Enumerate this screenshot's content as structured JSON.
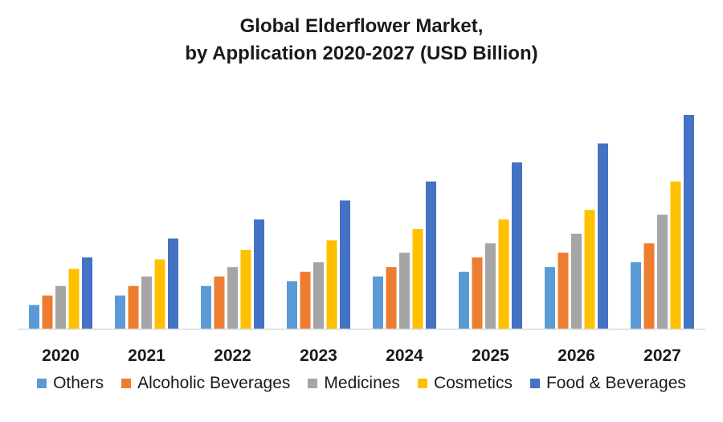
{
  "chart_data": {
    "type": "bar",
    "title_line1": "Global Elderflower Market,",
    "title_line2": "by Application 2020-2027 (USD Billion)",
    "categories": [
      "2020",
      "2021",
      "2022",
      "2023",
      "2024",
      "2025",
      "2026",
      "2027"
    ],
    "ylim": [
      0,
      23
    ],
    "grid": false,
    "legend_position": "bottom",
    "series": [
      {
        "name": "Others",
        "color": "#5B9BD5",
        "values": [
          2.5,
          3.5,
          4.5,
          5.0,
          5.5,
          6.0,
          6.5,
          7.0
        ]
      },
      {
        "name": "Alcoholic Beverages",
        "color": "#ED7D31",
        "values": [
          3.5,
          4.5,
          5.5,
          6.0,
          6.5,
          7.5,
          8.0,
          9.0
        ]
      },
      {
        "name": "Medicines",
        "color": "#A5A5A5",
        "values": [
          4.5,
          5.5,
          6.5,
          7.0,
          8.0,
          9.0,
          10.0,
          12.0
        ]
      },
      {
        "name": "Cosmetics",
        "color": "#FFC000",
        "values": [
          6.3,
          7.3,
          8.3,
          9.3,
          10.5,
          11.5,
          12.5,
          15.5
        ]
      },
      {
        "name": "Food & Beverages",
        "color": "#4472C4",
        "values": [
          7.5,
          9.5,
          11.5,
          13.5,
          15.5,
          17.5,
          19.5,
          22.5
        ]
      }
    ]
  }
}
